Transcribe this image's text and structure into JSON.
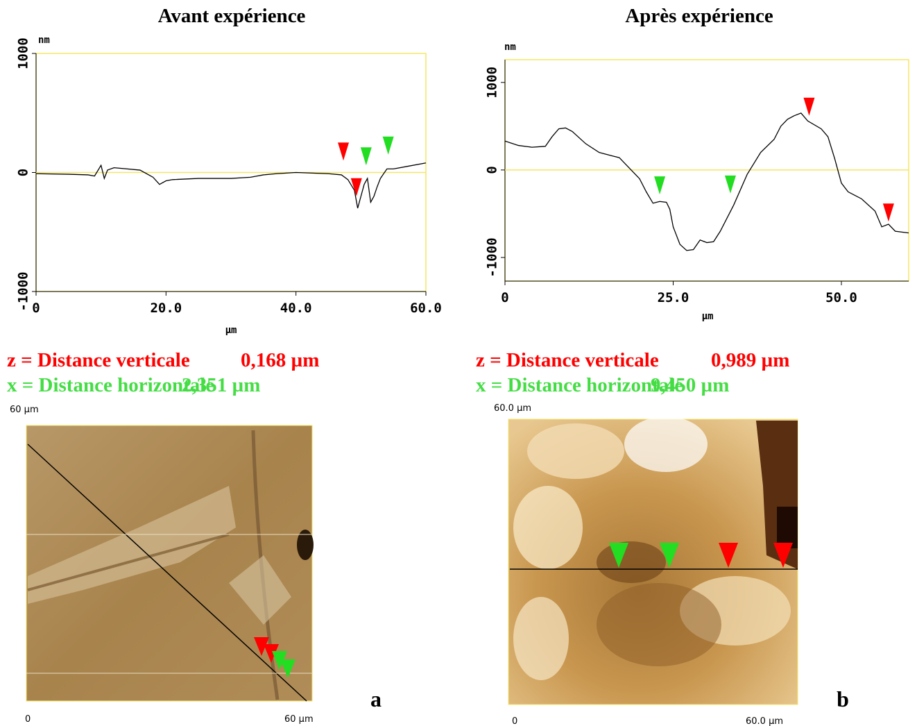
{
  "chart_data": [
    {
      "type": "line",
      "title": "Avant expérience",
      "x_label": "µm",
      "y_label": "nm",
      "x": [
        0,
        5,
        8,
        9,
        10,
        10.5,
        11,
        12,
        16,
        18,
        19,
        20,
        21,
        25,
        30,
        33,
        35,
        37,
        40,
        45,
        47,
        48,
        49,
        49.5,
        50,
        50.5,
        51,
        51.5,
        52,
        52.5,
        53,
        54,
        55,
        57,
        60
      ],
      "series": [
        {
          "color": "#000000",
          "values": [
            -10,
            -15,
            -20,
            -30,
            60,
            -50,
            20,
            40,
            20,
            -40,
            -100,
            -70,
            -60,
            -50,
            -50,
            -40,
            -20,
            -10,
            0,
            -10,
            -20,
            -60,
            -150,
            -300,
            -200,
            -100,
            -50,
            -250,
            -200,
            -120,
            -50,
            30,
            30,
            50,
            80
          ]
        }
      ],
      "xlim": [
        0,
        60
      ],
      "ylim": [
        -1000,
        1000
      ],
      "xticks": [
        0,
        {
          "value": 20,
          "label": "20.0"
        },
        {
          "value": 40,
          "label": "40.0"
        },
        {
          "value": 60,
          "label": "60.0"
        }
      ],
      "yticks": [
        -1000,
        0,
        1000
      ],
      "frame_color": "#f5e663",
      "markers": [
        {
          "x": 47.3,
          "y": 100,
          "color": "#ff0000"
        },
        {
          "x": 49.3,
          "y": -200,
          "color": "#ff0000"
        },
        {
          "x": 50.8,
          "y": 60,
          "color": "#22dd22"
        },
        {
          "x": 54.2,
          "y": 150,
          "color": "#22dd22"
        }
      ],
      "measurements": [
        {
          "label": "z = Distance verticale",
          "value": "0,168 µm",
          "color": "#ff0000"
        },
        {
          "label": "x = Distance horizontale",
          "value": "2,351 µm",
          "color": "#44dd44"
        }
      ],
      "image": {
        "y_label": "60 µm",
        "x_origin": "0",
        "x_end": "60 µm",
        "panel": "a"
      }
    },
    {
      "type": "line",
      "title": "Après expérience",
      "x_label": "µm",
      "y_label": "nm",
      "x": [
        0,
        2,
        4,
        6,
        7,
        8,
        9,
        10,
        12,
        14,
        16,
        17,
        18,
        20,
        21,
        22,
        23,
        24,
        24.5,
        25,
        26,
        27,
        28,
        29,
        30,
        31,
        32,
        34,
        36,
        38,
        40,
        41,
        42,
        43,
        44,
        45,
        47,
        48,
        49,
        50,
        51,
        52,
        53,
        55,
        56,
        57,
        58,
        60
      ],
      "series": [
        {
          "color": "#000000",
          "values": [
            330,
            280,
            260,
            270,
            380,
            470,
            480,
            440,
            300,
            200,
            160,
            140,
            60,
            -100,
            -250,
            -380,
            -360,
            -370,
            -450,
            -650,
            -850,
            -920,
            -910,
            -800,
            -830,
            -820,
            -700,
            -400,
            -50,
            200,
            350,
            500,
            580,
            620,
            650,
            560,
            470,
            380,
            130,
            -150,
            -250,
            -290,
            -330,
            -470,
            -650,
            -620,
            -700,
            -720
          ]
        }
      ],
      "xlim": [
        0,
        60
      ],
      "ylim": [
        -1270,
        1260
      ],
      "xticks": [
        0,
        {
          "value": 25,
          "label": "25.0"
        },
        {
          "value": 50,
          "label": "50.0"
        }
      ],
      "yticks": [
        -1000,
        0,
        1000
      ],
      "frame_color": "#f5e663",
      "markers": [
        {
          "x": 23,
          "y": -280,
          "color": "#22dd22"
        },
        {
          "x": 33.5,
          "y": -270,
          "color": "#22dd22"
        },
        {
          "x": 45.2,
          "y": 620,
          "color": "#ff0000"
        },
        {
          "x": 57,
          "y": -590,
          "color": "#ff0000"
        }
      ],
      "measurements": [
        {
          "label": "z = Distance verticale",
          "value": "0,989 µm",
          "color": "#ff0000"
        },
        {
          "label": "x = Distance horizontale",
          "value": "9,450 µm",
          "color": "#44dd44"
        }
      ],
      "image": {
        "y_label": "60.0 µm",
        "x_origin": "0",
        "x_end": "60.0 µm",
        "panel": "b"
      }
    }
  ]
}
